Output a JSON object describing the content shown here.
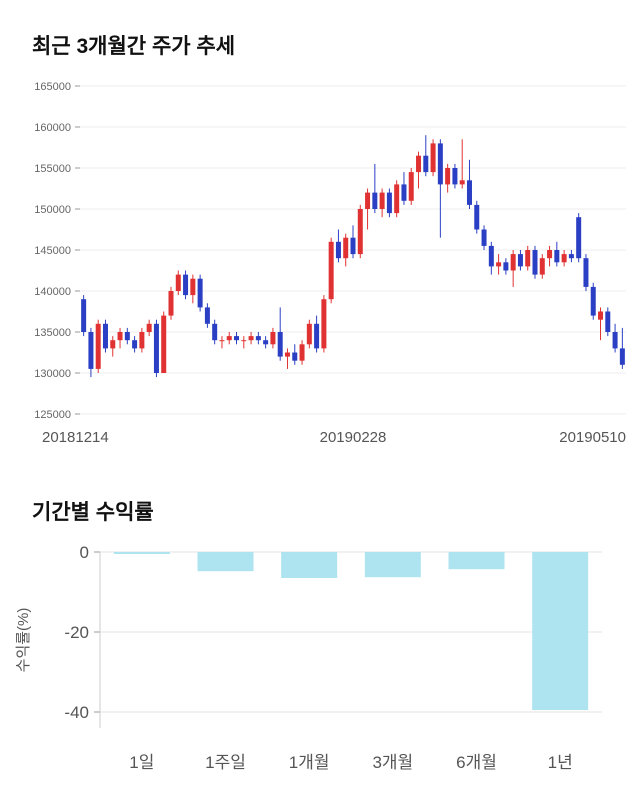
{
  "page": {
    "price_section_title": "최근 3개월간 주가 추세",
    "returns_section_title": "기간별 수익률"
  },
  "chart_data": [
    {
      "type": "candlestick",
      "title": "최근 3개월간 주가 추세",
      "ylim": [
        125000,
        165000
      ],
      "yticks": [
        165000,
        160000,
        155000,
        150000,
        145000,
        140000,
        135000,
        130000,
        125000
      ],
      "xticks": [
        "20181214",
        "20190228",
        "20190510"
      ],
      "grid": true,
      "colors": {
        "up": "#e03232",
        "down": "#2b3fc4",
        "grid": "#ececec",
        "tick": "#999999",
        "label": "#666666",
        "xlabel": "#555555"
      },
      "candles": [
        [
          139000,
          139500,
          134500,
          135000
        ],
        [
          135000,
          135500,
          129500,
          130500
        ],
        [
          130500,
          136500,
          130000,
          136000
        ],
        [
          136000,
          136500,
          132500,
          133000
        ],
        [
          133000,
          134500,
          132000,
          134000
        ],
        [
          134000,
          135500,
          133000,
          135000
        ],
        [
          135000,
          135500,
          133500,
          134000
        ],
        [
          134000,
          134500,
          132500,
          133000
        ],
        [
          133000,
          135500,
          132500,
          135000
        ],
        [
          135000,
          136500,
          134500,
          136000
        ],
        [
          136000,
          136500,
          129500,
          130000
        ],
        [
          130000,
          137500,
          130000,
          137000
        ],
        [
          137000,
          140500,
          136500,
          140000
        ],
        [
          140000,
          142500,
          139500,
          142000
        ],
        [
          142000,
          142500,
          139000,
          139500
        ],
        [
          139500,
          142000,
          138500,
          141500
        ],
        [
          141500,
          142000,
          137500,
          138000
        ],
        [
          138000,
          138500,
          135500,
          136000
        ],
        [
          136000,
          136500,
          133500,
          134000
        ],
        [
          134000,
          134500,
          133000,
          134000
        ],
        [
          134000,
          135000,
          133500,
          134500
        ],
        [
          134500,
          135000,
          133500,
          134000
        ],
        [
          134000,
          134500,
          133000,
          134000
        ],
        [
          134000,
          135000,
          133500,
          134500
        ],
        [
          134500,
          135000,
          133500,
          134000
        ],
        [
          134000,
          134500,
          133000,
          133500
        ],
        [
          133500,
          135500,
          133000,
          135000
        ],
        [
          135000,
          138000,
          131500,
          132000
        ],
        [
          132000,
          133000,
          130500,
          132500
        ],
        [
          132500,
          133500,
          131000,
          131500
        ],
        [
          131500,
          134000,
          131000,
          133500
        ],
        [
          133500,
          136500,
          133000,
          136000
        ],
        [
          136000,
          137000,
          132500,
          133000
        ],
        [
          133000,
          139500,
          132500,
          139000
        ],
        [
          139000,
          146500,
          138500,
          146000
        ],
        [
          146000,
          147500,
          143500,
          144000
        ],
        [
          144000,
          147000,
          143000,
          146500
        ],
        [
          146500,
          148000,
          144000,
          144500
        ],
        [
          144500,
          150500,
          144000,
          150000
        ],
        [
          150000,
          152500,
          147500,
          152000
        ],
        [
          152000,
          155500,
          149500,
          150000
        ],
        [
          150000,
          152500,
          149000,
          152000
        ],
        [
          152000,
          152500,
          149000,
          149500
        ],
        [
          149500,
          153500,
          149000,
          153000
        ],
        [
          153000,
          154500,
          150500,
          151000
        ],
        [
          151000,
          155000,
          150500,
          154500
        ],
        [
          154500,
          157000,
          152500,
          156500
        ],
        [
          156500,
          159000,
          154000,
          154500
        ],
        [
          154500,
          158500,
          154000,
          158000
        ],
        [
          158000,
          158500,
          146500,
          153000
        ],
        [
          153000,
          155500,
          152000,
          155000
        ],
        [
          155000,
          155500,
          152500,
          153000
        ],
        [
          153000,
          158500,
          152500,
          153500
        ],
        [
          153500,
          156000,
          150000,
          150500
        ],
        [
          150500,
          151000,
          147000,
          147500
        ],
        [
          147500,
          148000,
          145000,
          145500
        ],
        [
          145500,
          146000,
          142000,
          143000
        ],
        [
          143000,
          144500,
          142000,
          143500
        ],
        [
          143500,
          144000,
          142000,
          142500
        ],
        [
          142500,
          145000,
          140500,
          144500
        ],
        [
          144500,
          145000,
          142500,
          143000
        ],
        [
          143000,
          145500,
          142500,
          145000
        ],
        [
          145000,
          145500,
          141500,
          142000
        ],
        [
          142000,
          144500,
          141500,
          144000
        ],
        [
          144000,
          145500,
          143000,
          145000
        ],
        [
          145000,
          146000,
          143000,
          143500
        ],
        [
          143500,
          145000,
          143000,
          144500
        ],
        [
          144500,
          145000,
          143500,
          144000
        ],
        [
          149000,
          149500,
          143500,
          144000
        ],
        [
          144000,
          144500,
          140000,
          140500
        ],
        [
          140500,
          141000,
          136500,
          137000
        ],
        [
          136500,
          138000,
          134000,
          137500
        ],
        [
          137500,
          138000,
          134500,
          135000
        ],
        [
          135000,
          136000,
          132500,
          133000
        ],
        [
          133000,
          135500,
          130500,
          131000
        ]
      ]
    },
    {
      "type": "bar",
      "title": "기간별 수익률",
      "categories": [
        "1일",
        "1주일",
        "1개월",
        "3개월",
        "6개월",
        "1년"
      ],
      "values": [
        -0.5,
        -4.8,
        -6.5,
        -6.3,
        -4.3,
        -39.5
      ],
      "ylabel": "수익률(%)",
      "yticks": [
        0,
        -20,
        -40
      ],
      "ylim": [
        -44,
        0
      ],
      "grid": true,
      "bar_color": "#aee3f0",
      "colors": {
        "grid": "#e3e3e3",
        "tick": "#999999",
        "label": "#555555",
        "axis": "#cccccc"
      }
    }
  ]
}
